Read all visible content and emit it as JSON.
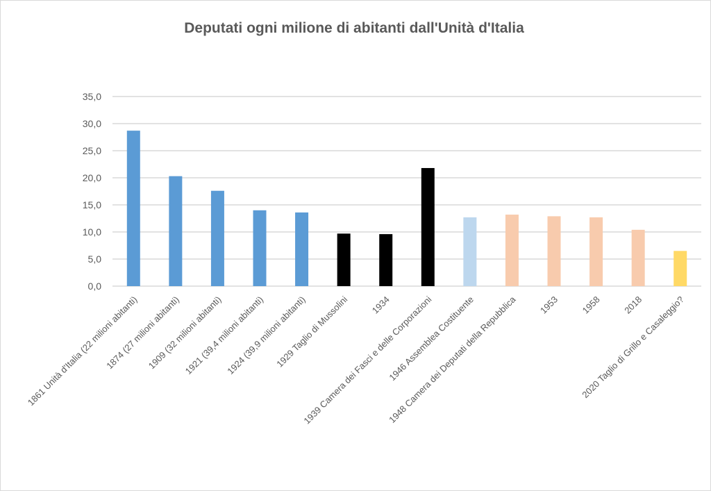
{
  "chart_data": {
    "type": "bar",
    "title": "Deputati ogni milione di abitanti dall'Unità d'Italia",
    "xlabel": "",
    "ylabel": "",
    "ylim": [
      0,
      35
    ],
    "yticks": [
      "0,0",
      "5,0",
      "10,0",
      "15,0",
      "20,0",
      "25,0",
      "30,0",
      "35,0"
    ],
    "grid": true,
    "legend": "none",
    "categories": [
      "1861 Unità d'Italia (22 milioni abitanti)",
      "1874 (27 milioni abitanti)",
      "1909 (32 milioni abitanti)",
      "1921 (39,4 milioni abitanti)",
      "1924 (39,9 milioni abitanti)",
      "1929 Taglio di Mussolini",
      "1934",
      "1939 Camera dei Fasci e delle Corporazioni",
      "1946 Assemblea Costituente",
      "1948 Camera dei Deputati della Repubblica",
      "1953",
      "1958",
      "2018",
      "2020 Taglio di Grillo e Casaleggio?"
    ],
    "values": [
      28.7,
      20.3,
      17.6,
      14.0,
      13.6,
      9.7,
      9.6,
      21.8,
      12.7,
      13.2,
      12.9,
      12.7,
      10.4,
      6.5
    ],
    "colors": [
      "#5b9bd5",
      "#5b9bd5",
      "#5b9bd5",
      "#5b9bd5",
      "#5b9bd5",
      "#000000",
      "#000000",
      "#000000",
      "#bdd7ee",
      "#f8cbad",
      "#f8cbad",
      "#f8cbad",
      "#f8cbad",
      "#ffd966"
    ]
  }
}
